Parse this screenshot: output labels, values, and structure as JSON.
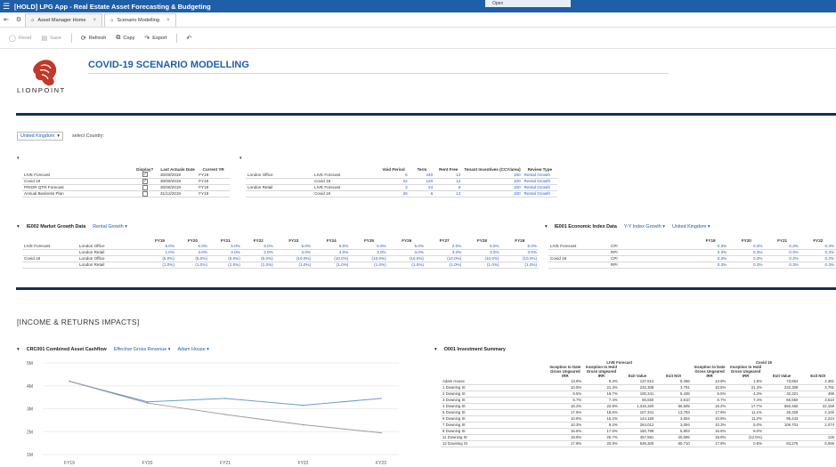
{
  "window": {
    "title": "[HOLD] LPG App - Real Estate Asset Forecasting & Budgeting",
    "open_label": "Open"
  },
  "tabs": [
    {
      "label": "Asset Manager Home"
    },
    {
      "label": "Scenario Modelling"
    }
  ],
  "toolbar": {
    "reset": "Reset",
    "save": "Save",
    "refresh": "Refresh",
    "copy": "Copy",
    "export": "Export"
  },
  "logo": {
    "text": "LIONPOINT"
  },
  "page": {
    "title": "COVID-19 SCENARIO MODELLING"
  },
  "country": {
    "selected": "United Kingdom",
    "label": "select Country:"
  },
  "scenarios": {
    "headers": [
      "Display?",
      "Last Actuals Date",
      "Current YR"
    ],
    "rows": [
      {
        "name": "LIVE Forecast",
        "checked": true,
        "date": "30/09/2019",
        "yr": "FY19"
      },
      {
        "name": "Covid 19",
        "checked": true,
        "date": "30/09/2019",
        "yr": "FY19"
      },
      {
        "name": "PRIOR QTR Forecast",
        "checked": false,
        "date": "30/06/2019",
        "yr": "FY19"
      },
      {
        "name": "Annual Business Plan",
        "checked": false,
        "date": "31/12/2019",
        "yr": "FY19"
      }
    ]
  },
  "leasing": {
    "headers": [
      "Void Period",
      "Term",
      "Rent Free",
      "Tenant Incentives (CCY/area)",
      "Review Type"
    ],
    "rows": [
      {
        "group": "London Office",
        "scenario": "LIVE Forecast",
        "void": "6",
        "term": "240",
        "free": "12",
        "ti": "100",
        "type": "Rental Growth"
      },
      {
        "group": "",
        "scenario": "Covid 19",
        "void": "22",
        "term": "120",
        "free": "12",
        "ti": "100",
        "type": "Rental Growth"
      },
      {
        "group": "London Retail",
        "scenario": "LIVE Forecast",
        "void": "3",
        "term": "24",
        "free": "6",
        "ti": "100",
        "type": "Rental Growth"
      },
      {
        "group": "",
        "scenario": "Covid 19",
        "void": "26",
        "term": "6",
        "free": "13",
        "ti": "100",
        "type": "Rental Growth"
      }
    ]
  },
  "ie002": {
    "title": "IE002 Market Growth Data",
    "dropdown": "Rental Growth",
    "years": [
      "FY19",
      "FY20",
      "FY21",
      "FY22",
      "FY23",
      "FY24",
      "FY25",
      "FY26",
      "FY27",
      "FY28",
      "FY29"
    ],
    "rows": [
      {
        "scenario": "LIVE Forecast",
        "sector": "London Office",
        "values": [
          "5.0%",
          "5.0%",
          "5.0%",
          "5.0%",
          "5.0%",
          "5.0%",
          "5.0%",
          "5.0%",
          "2.0%",
          "5.0%",
          "5.0%"
        ]
      },
      {
        "scenario": "",
        "sector": "London Retail",
        "values": [
          "1.0%",
          "3.0%",
          "4.0%",
          "2.0%",
          "3.0%",
          "4.0%",
          "3.0%",
          "3.0%",
          "3.0%",
          "3.0%",
          "3.0%"
        ]
      },
      {
        "scenario": "Covid 19",
        "sector": "London Office",
        "values": [
          "(5.0%)",
          "(5.0%)",
          "(5.0%)",
          "(5.0%)",
          "(10.0%)",
          "(10.0%)",
          "(10.0%)",
          "(10.0%)",
          "(10.0%)",
          "(10.0%)",
          "(10.0%)"
        ]
      },
      {
        "scenario": "",
        "sector": "London Retail",
        "values": [
          "(1.0%)",
          "(1.0%)",
          "(1.0%)",
          "(1.0%)",
          "(1.0%)",
          "(1.0%)",
          "(1.0%)",
          "(1.0%)",
          "(1.0%)",
          "(1.0%)",
          "(1.0%)"
        ]
      }
    ]
  },
  "ie001": {
    "title": "IE001 Economic Index Data",
    "dropdown1": "Y-Y Index Growth",
    "dropdown2": "United Kingdom",
    "years": [
      "FY19",
      "FY20",
      "FY21",
      "FY22"
    ],
    "rows": [
      {
        "scenario": "LIVE Forecast",
        "index": "CPI",
        "values": [
          "0.3%",
          "0.3%",
          "0.3%",
          "0.3%"
        ]
      },
      {
        "scenario": "",
        "index": "RPI",
        "values": [
          "0.3%",
          "0.3%",
          "0.3%",
          "0.3%"
        ]
      },
      {
        "scenario": "Covid 19",
        "index": "CPI",
        "values": [
          "0.3%",
          "0.3%",
          "0.3%",
          "0.3%"
        ]
      },
      {
        "scenario": "",
        "index": "RPI",
        "values": [
          "0.3%",
          "0.3%",
          "0.3%",
          "0.3%"
        ]
      }
    ]
  },
  "income": {
    "title": "[INCOME & RETURNS IMPACTS]"
  },
  "crc001": {
    "title": "CRC001 Combined Asset Cashflow",
    "dropdown1": "Effective Gross Revenue",
    "dropdown2": "Adam House"
  },
  "chart_data": {
    "type": "line",
    "categories": [
      "FY19",
      "FY20",
      "FY21",
      "FY22",
      "FY23"
    ],
    "y_ticks": [
      "5M",
      "4M",
      "3M",
      "2M",
      "1M"
    ],
    "ylim": [
      1000000,
      5000000
    ],
    "series": [
      {
        "values": [
          4200000,
          3300000,
          3450000,
          3150000,
          3450000
        ],
        "color": "#6a9bd1"
      },
      {
        "values": [
          4200000,
          3250000,
          2750000,
          2300000,
          1950000
        ],
        "color": "#9a9a9a"
      }
    ]
  },
  "investment": {
    "title": "O001 Investment Summary",
    "groups": [
      "LIVE Forecast",
      "Covid 19"
    ],
    "col_headers": [
      "Inception to Date Gross Ungeared IRR",
      "Inception to Hold Gross Ungeared IRR",
      "Exit Value",
      "Exit NOI"
    ],
    "rows": [
      {
        "name": "Adam House",
        "live": [
          "13.9%",
          "9.3%",
          "137,612",
          "8,496"
        ],
        "covid": [
          "13.9%",
          "1.8%",
          "73,864",
          "2,381"
        ]
      },
      {
        "name": "1 Downing St",
        "live": [
          "10.5%",
          "21.3%",
          "232,308",
          "3,791"
        ],
        "covid": [
          "10.5%",
          "21.3%",
          "232,308",
          "3,791"
        ]
      },
      {
        "name": "2 Downing St",
        "live": [
          "5.5%",
          "16.7%",
          "100,341",
          "5,435"
        ],
        "covid": [
          "5.5%",
          "4.3%",
          "32,321",
          "496"
        ]
      },
      {
        "name": "3 Downing St",
        "live": [
          "5.7%",
          "7.4%",
          "66,550",
          "3,610"
        ],
        "covid": [
          "5.7%",
          "7.4%",
          "66,550",
          "3,610"
        ]
      },
      {
        "name": "4 Downing St",
        "live": [
          "15.2%",
          "22.9%",
          "1,315,320",
          "66,505"
        ],
        "covid": [
          "15.2%",
          "17.7%",
          "550,450",
          "22,159"
        ]
      },
      {
        "name": "5 Downing St",
        "live": [
          "17.9%",
          "18.6%",
          "107,341",
          "13,793"
        ],
        "covid": [
          "17.9%",
          "11.1%",
          "25,326",
          "4,100"
        ]
      },
      {
        "name": "6 Downing St",
        "live": [
          "10.9%",
          "15.2%",
          "144,183",
          "3,604"
        ],
        "covid": [
          "10.9%",
          "11.2%",
          "95,443",
          "2,224"
        ]
      },
      {
        "name": "7 Downing St",
        "live": [
          "10.3%",
          "9.2%",
          "264,012",
          "3,094"
        ],
        "covid": [
          "10.3%",
          "5.0%",
          "106,701",
          "2,074"
        ]
      },
      {
        "name": "8 Downing St",
        "live": [
          "16.6%",
          "17.6%",
          "160,799",
          "5,803"
        ],
        "covid": [
          "16.6%",
          "8.0%",
          "",
          ""
        ]
      },
      {
        "name": "11 Downing St",
        "live": [
          "19.9%",
          "20.7%",
          "457,581",
          "20,595"
        ],
        "covid": [
          "19.9%",
          "(12.6%)",
          "",
          "125"
        ]
      },
      {
        "name": "12 Downing St",
        "live": [
          "17.9%",
          "20.9%",
          "936,300",
          "60,710"
        ],
        "covid": [
          "17.9%",
          "0.8%",
          "83,275",
          "5,066"
        ]
      }
    ]
  }
}
